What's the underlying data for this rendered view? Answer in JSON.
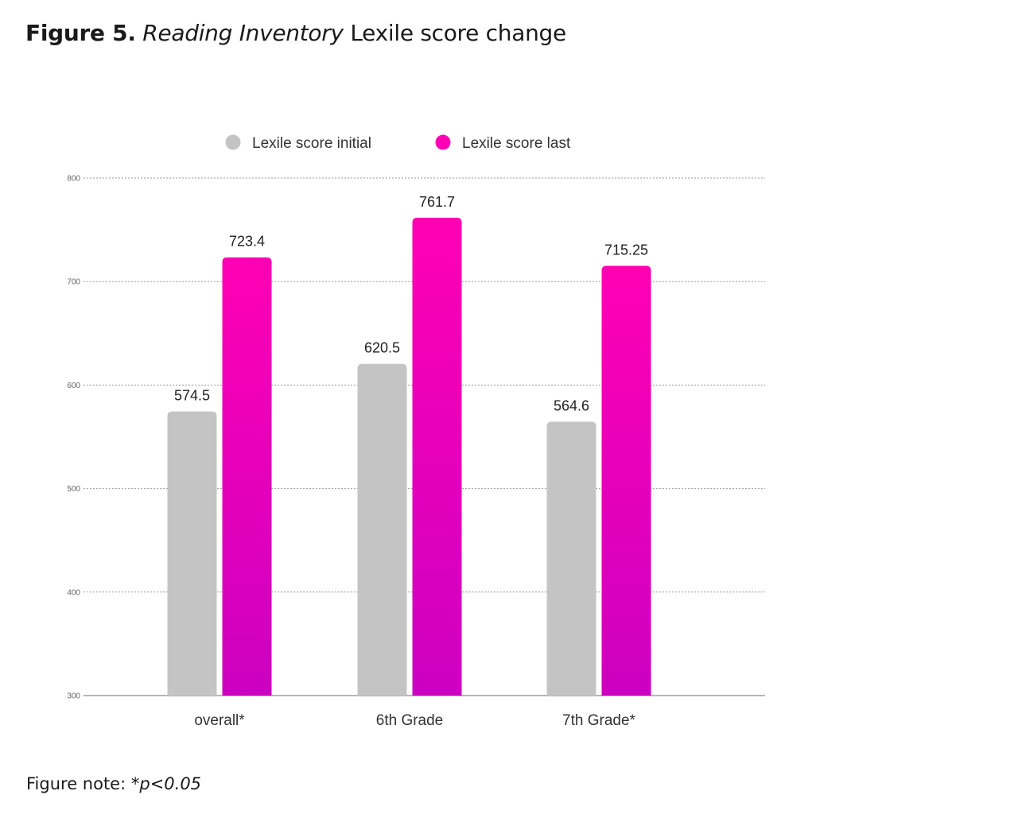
{
  "figure": {
    "title_bold": "Figure 5.",
    "title_italic": "Reading Inventory",
    "title_rest": "Lexile score change",
    "note_prefix": "Figure note: *",
    "note_italic": "p<0.05"
  },
  "chart_data": {
    "type": "bar",
    "title": "Reading Inventory Lexile score change",
    "categories": [
      "overall*",
      "6th Grade",
      "7th Grade*"
    ],
    "series": [
      {
        "name": "Lexile score initial",
        "values": [
          574.5,
          620.5,
          564.6
        ],
        "labels": [
          "574.5",
          "620.5",
          "564.6"
        ],
        "color": "#c4c4c4"
      },
      {
        "name": "Lexile score last",
        "values": [
          723.4,
          761.7,
          715.25
        ],
        "labels": [
          "723.4",
          "761.7",
          "715.25"
        ],
        "color": "#ff00b4",
        "color_end": "#cc00c0"
      }
    ],
    "ylim": [
      300,
      800
    ],
    "yticks": [
      300,
      400,
      500,
      600,
      700,
      800
    ],
    "ytick_labels": [
      "300",
      "400",
      "500",
      "600",
      "700",
      "800"
    ],
    "xlabel": "",
    "ylabel": "",
    "grid": true,
    "legend_position": "top"
  }
}
